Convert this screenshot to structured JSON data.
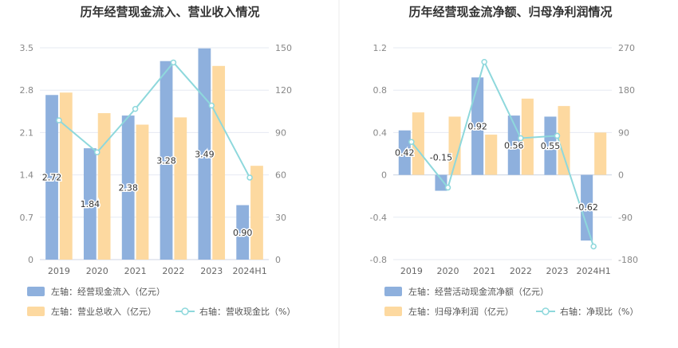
{
  "colors": {
    "bar_primary": "#8eb0dd",
    "bar_secondary": "#fdd9a0",
    "line": "#8ed8dc",
    "grid": "#e6eaf2"
  },
  "chart_data": [
    {
      "type": "bar",
      "title": "历年经营现金流入、营业收入情况",
      "categories": [
        "2019",
        "2020",
        "2021",
        "2022",
        "2023",
        "2024H1"
      ],
      "left_axis": {
        "ticks": [
          "0",
          "0.7",
          "1.4",
          "2.1",
          "2.8",
          "3.5"
        ],
        "ylim": [
          0,
          3.5
        ]
      },
      "right_axis": {
        "ticks": [
          "0",
          "30",
          "60",
          "90",
          "120",
          "150"
        ],
        "ylim": [
          0,
          150
        ]
      },
      "series": [
        {
          "name": "经营现金流入",
          "axis": "left",
          "kind": "bar",
          "values": [
            2.72,
            1.84,
            2.38,
            3.28,
            3.49,
            0.9
          ],
          "labels": [
            "2.72",
            "1.84",
            "2.38",
            "3.28",
            "3.49",
            "0.90"
          ]
        },
        {
          "name": "营业总收入",
          "axis": "left",
          "kind": "bar",
          "values": [
            2.76,
            2.42,
            2.23,
            2.35,
            3.2,
            1.55
          ]
        },
        {
          "name": "营收现金比",
          "axis": "right",
          "kind": "line",
          "values": [
            98.6,
            76.0,
            106.7,
            139.6,
            109.1,
            58.1
          ]
        }
      ],
      "legend": [
        "左轴：经营现金流入（亿元）",
        "左轴：营业总收入（亿元）",
        "右轴：营收现金比（%）"
      ]
    },
    {
      "type": "bar",
      "title": "历年经营现金流净额、归母净利润情况",
      "categories": [
        "2019",
        "2020",
        "2021",
        "2022",
        "2023",
        "2024H1"
      ],
      "left_axis": {
        "ticks": [
          "-0.8",
          "-0.4",
          "0",
          "0.4",
          "0.8",
          "1.2"
        ],
        "ylim": [
          -0.8,
          1.2
        ]
      },
      "right_axis": {
        "ticks": [
          "-180",
          "-90",
          "0",
          "90",
          "180",
          "270"
        ],
        "ylim": [
          -180,
          270
        ]
      },
      "series": [
        {
          "name": "经营活动现金流净额",
          "axis": "left",
          "kind": "bar",
          "values": [
            0.42,
            -0.15,
            0.92,
            0.56,
            0.55,
            -0.62
          ],
          "labels": [
            "0.42",
            "-0.15",
            "0.92",
            "0.56",
            "0.55",
            "-0.62"
          ]
        },
        {
          "name": "归母净利润",
          "axis": "left",
          "kind": "bar",
          "values": [
            0.59,
            0.55,
            0.38,
            0.72,
            0.65,
            0.4
          ]
        },
        {
          "name": "净现比",
          "axis": "right",
          "kind": "line",
          "values": [
            70,
            -27,
            240,
            78,
            83,
            -152
          ]
        }
      ],
      "legend": [
        "左轴：经营活动现金流净额（亿元）",
        "左轴：归母净利润（亿元）",
        "右轴：净现比（%）"
      ]
    }
  ]
}
